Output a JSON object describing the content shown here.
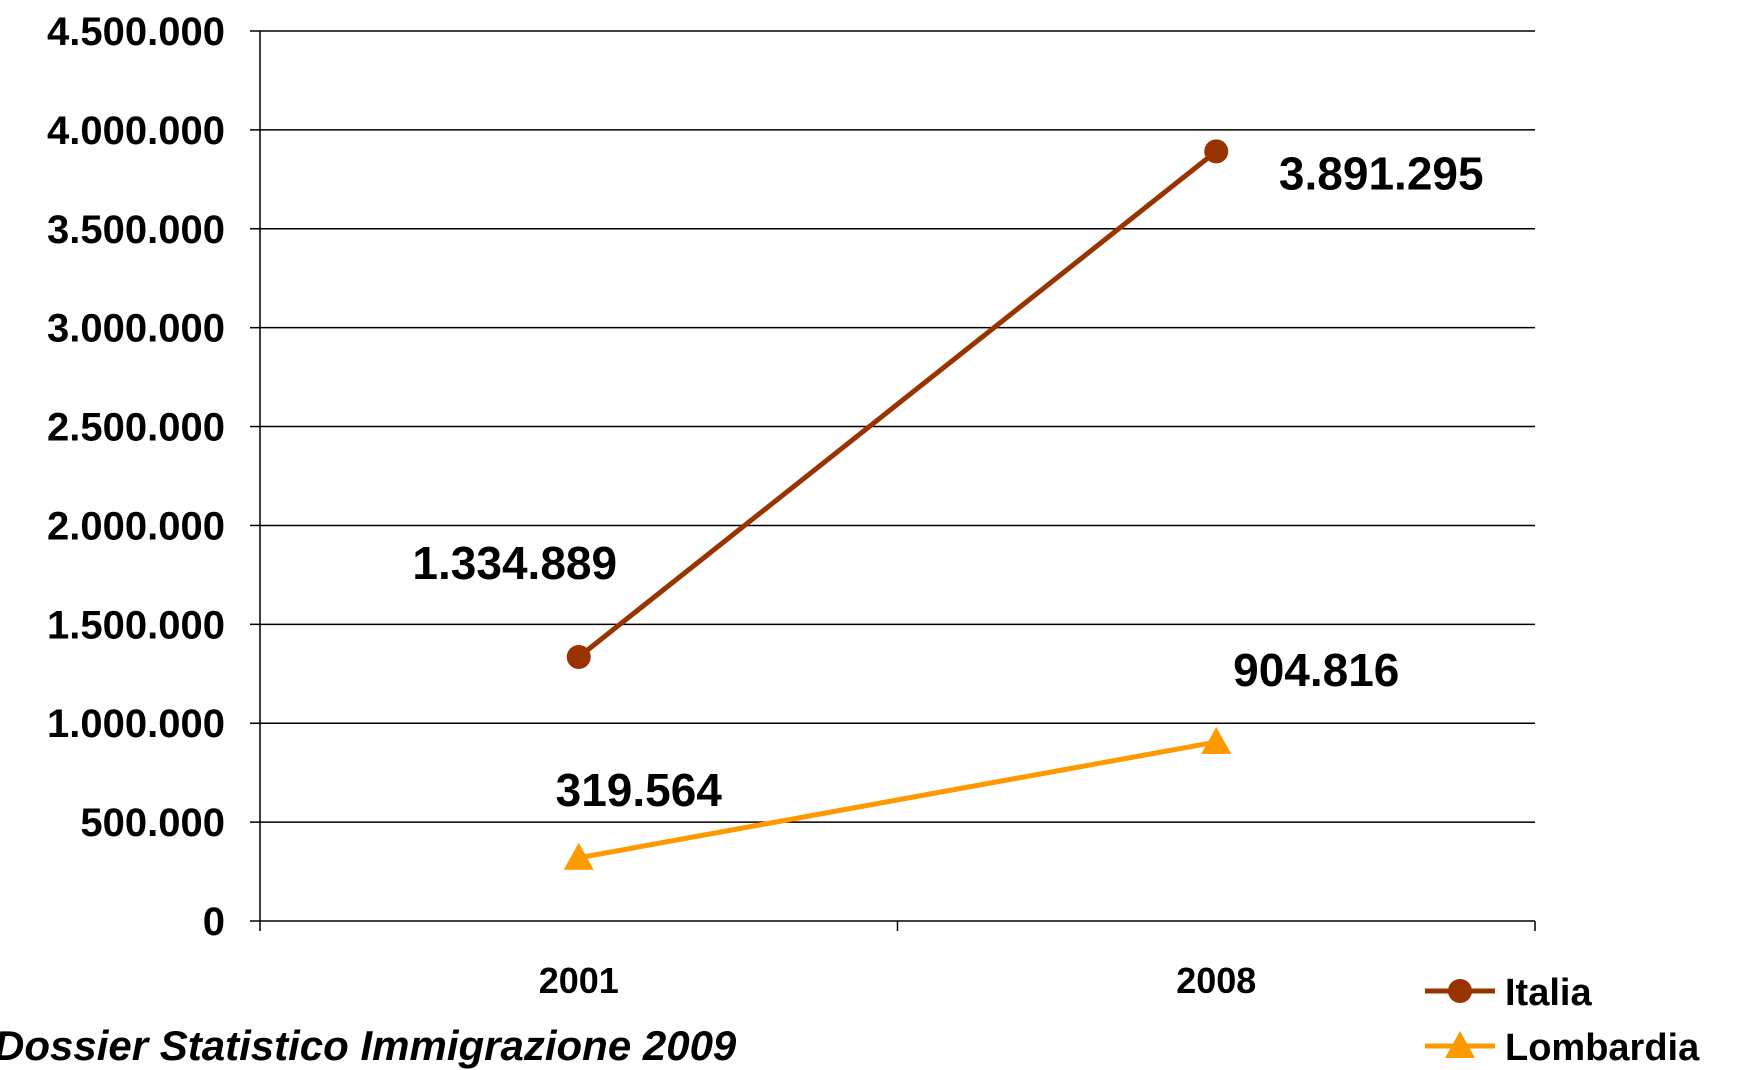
{
  "chart_data": {
    "type": "line",
    "categories": [
      "2001",
      "2008"
    ],
    "series": [
      {
        "name": "Italia",
        "values": [
          1334889,
          3891295
        ],
        "labels": [
          "1.334.889",
          "3.891.295"
        ],
        "color": "#993300",
        "marker": "circle"
      },
      {
        "name": "Lombardia",
        "values": [
          319564,
          904816
        ],
        "labels": [
          "319.564",
          "904.816"
        ],
        "color": "#FF9900",
        "marker": "triangle"
      }
    ],
    "ylim": [
      0,
      4500000
    ],
    "yticks": [
      0,
      500000,
      1000000,
      1500000,
      2000000,
      2500000,
      3000000,
      3500000,
      4000000,
      4500000
    ],
    "ytick_labels": [
      "0",
      "500.000",
      "1.000.000",
      "1.500.000",
      "2.000.000",
      "2.500.000",
      "3.000.000",
      "3.500.000",
      "4.000.000",
      "4.500.000"
    ],
    "grid": true,
    "legend": "bottom-right",
    "title": "",
    "xlabel": "",
    "ylabel": ""
  },
  "source": "Dossier Statistico Immigrazione 2009"
}
